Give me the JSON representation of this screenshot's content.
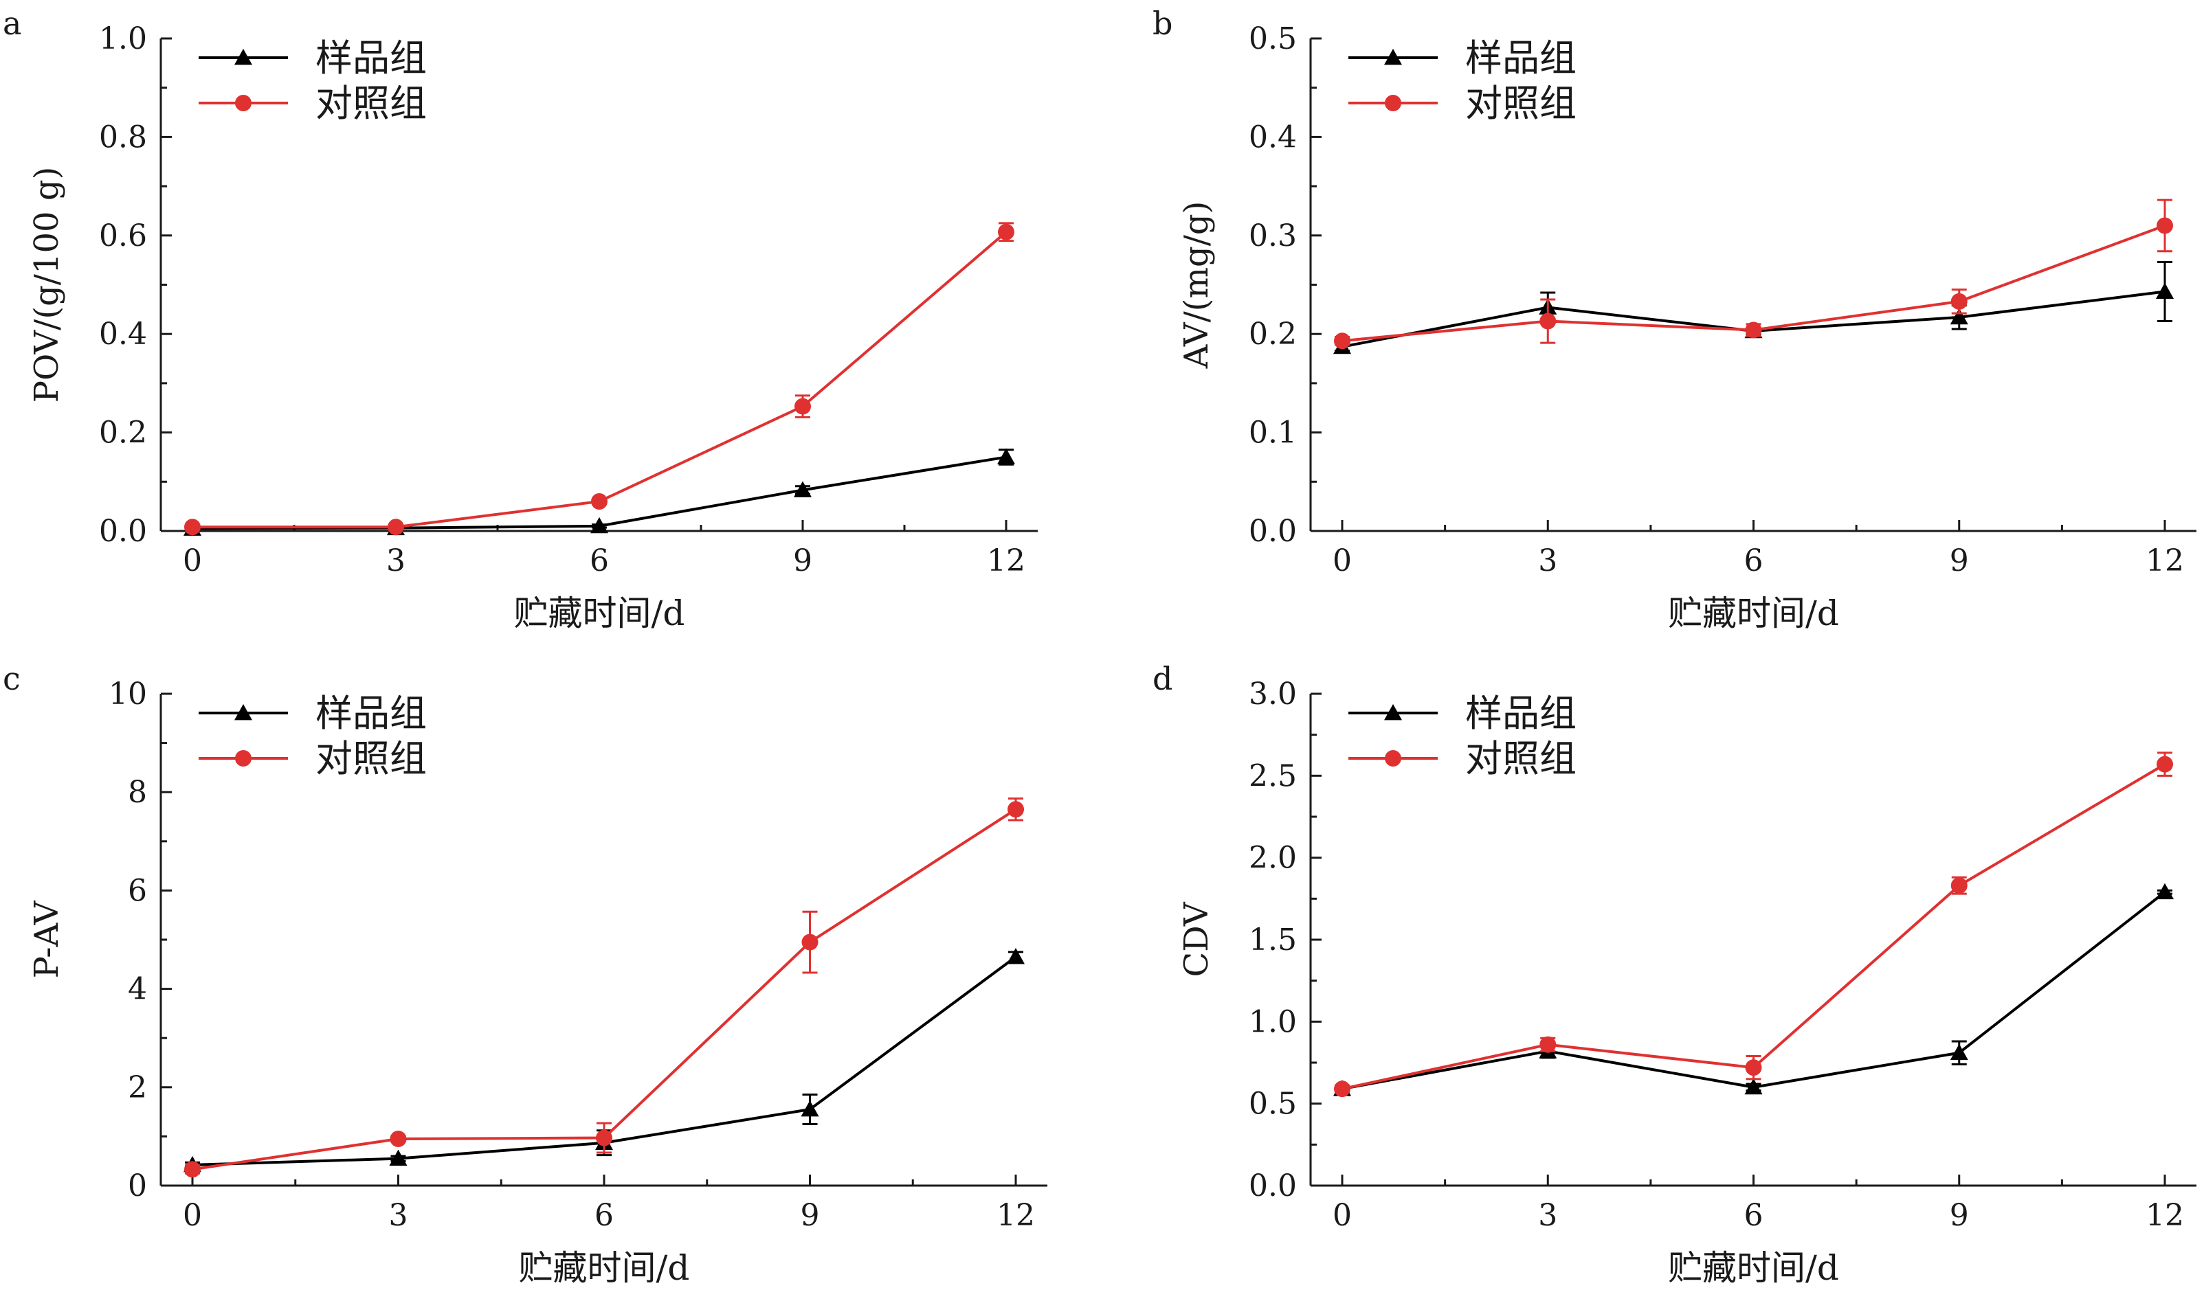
{
  "colors": {
    "sample": "#000000",
    "control": "#e03131",
    "axis": "#1a1a1a"
  },
  "chart_data": [
    {
      "panel": "a",
      "type": "line",
      "xlabel": "贮藏时间/d",
      "ylabel": "POV/(g/100 g)",
      "x": [
        0,
        3,
        6,
        9,
        12
      ],
      "xticks": [
        "0",
        "3",
        "6",
        "9",
        "12"
      ],
      "yticks": [
        "0.0",
        "0.2",
        "0.4",
        "0.6",
        "0.8",
        "1.0"
      ],
      "ylim": [
        0,
        1.0
      ],
      "legend_position": "top-left",
      "series": [
        {
          "name": "样品组",
          "marker": "triangle",
          "values": [
            0.005,
            0.006,
            0.01,
            0.083,
            0.15
          ],
          "errors": [
            0.002,
            0.002,
            0.003,
            0.008,
            0.015
          ]
        },
        {
          "name": "对照组",
          "marker": "circle",
          "values": [
            0.008,
            0.008,
            0.06,
            0.253,
            0.607
          ],
          "errors": [
            0.003,
            0.003,
            0.005,
            0.022,
            0.018
          ]
        }
      ]
    },
    {
      "panel": "b",
      "type": "line",
      "xlabel": "贮藏时间/d",
      "ylabel": "AV/(mg/g)",
      "x": [
        0,
        3,
        6,
        9,
        12
      ],
      "xticks": [
        "0",
        "3",
        "6",
        "9",
        "12"
      ],
      "yticks": [
        "0.0",
        "0.1",
        "0.2",
        "0.3",
        "0.4",
        "0.5"
      ],
      "ylim": [
        0,
        0.5
      ],
      "legend_position": "top-left",
      "series": [
        {
          "name": "样品组",
          "marker": "triangle",
          "values": [
            0.187,
            0.227,
            0.203,
            0.217,
            0.243
          ],
          "errors": [
            0.004,
            0.015,
            0.003,
            0.012,
            0.03
          ]
        },
        {
          "name": "对照组",
          "marker": "circle",
          "values": [
            0.193,
            0.213,
            0.204,
            0.233,
            0.31
          ],
          "errors": [
            0.004,
            0.022,
            0.006,
            0.012,
            0.026
          ]
        }
      ]
    },
    {
      "panel": "c",
      "type": "line",
      "xlabel": "贮藏时间/d",
      "ylabel": "P-AV",
      "x": [
        0,
        3,
        6,
        9,
        12
      ],
      "xticks": [
        "0",
        "3",
        "6",
        "9",
        "12"
      ],
      "yticks": [
        "0",
        "2",
        "4",
        "6",
        "8",
        "10"
      ],
      "ylim": [
        0,
        10
      ],
      "legend_position": "top-left",
      "series": [
        {
          "name": "样品组",
          "marker": "triangle",
          "values": [
            0.42,
            0.55,
            0.87,
            1.55,
            4.65
          ],
          "errors": [
            0.05,
            0.05,
            0.25,
            0.3,
            0.1
          ]
        },
        {
          "name": "对照组",
          "marker": "circle",
          "values": [
            0.33,
            0.95,
            0.97,
            4.95,
            7.65
          ],
          "errors": [
            0.08,
            0.06,
            0.3,
            0.62,
            0.22
          ]
        }
      ]
    },
    {
      "panel": "d",
      "type": "line",
      "xlabel": "贮藏时间/d",
      "ylabel": "CDV",
      "x": [
        0,
        3,
        6,
        9,
        12
      ],
      "xticks": [
        "0",
        "3",
        "6",
        "9",
        "12"
      ],
      "yticks": [
        "0.0",
        "0.5",
        "1.0",
        "1.5",
        "2.0",
        "2.5",
        "3.0"
      ],
      "ylim": [
        0,
        3.0
      ],
      "legend_position": "top-left",
      "series": [
        {
          "name": "样品组",
          "marker": "triangle",
          "values": [
            0.59,
            0.82,
            0.6,
            0.81,
            1.79
          ],
          "errors": [
            0.02,
            0.04,
            0.02,
            0.07,
            0.01
          ]
        },
        {
          "name": "对照组",
          "marker": "circle",
          "values": [
            0.59,
            0.86,
            0.72,
            1.83,
            2.57
          ],
          "errors": [
            0.02,
            0.04,
            0.07,
            0.05,
            0.07
          ]
        }
      ]
    }
  ]
}
